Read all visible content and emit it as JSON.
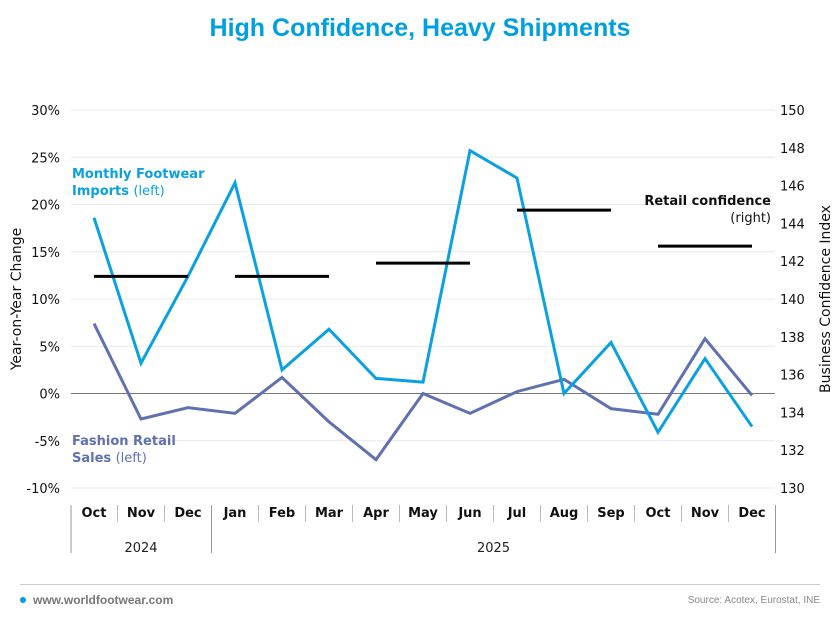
{
  "title": "High Confidence, Heavy Shipments",
  "footer": {
    "website": "www.worldfootwear.com",
    "source": "Source: Acotex, Eurostat, INE"
  },
  "colors": {
    "title": "#00a0e0",
    "imports": "#0ba0e0",
    "retail": "#6070b0",
    "confidence": "#000000"
  },
  "chart_data": {
    "type": "line",
    "title": "High Confidence, Heavy Shipments",
    "x": [
      "Oct",
      "Nov",
      "Dec",
      "Jan",
      "Feb",
      "Mar",
      "Apr",
      "May",
      "Jun",
      "Jul",
      "Aug",
      "Sep",
      "Oct",
      "Nov",
      "Dec"
    ],
    "year_groups": [
      {
        "label": "2024",
        "months": 3
      },
      {
        "label": "2025",
        "months": 12
      }
    ],
    "ylabel": "Year-on-Year Change",
    "ylabel_right": "Business Confidence Index",
    "ylim": [
      -10,
      30
    ],
    "ylim_right": [
      130,
      150
    ],
    "yticks": [
      "30%",
      "25%",
      "20%",
      "15%",
      "10%",
      "5%",
      "0%",
      "-5%",
      "-10%"
    ],
    "yticks_right": [
      "150",
      "148",
      "146",
      "144",
      "142",
      "140",
      "138",
      "136",
      "134",
      "132",
      "130"
    ],
    "grid": true,
    "series": [
      {
        "name": "Monthly Footwear Imports",
        "axis": "left",
        "label_bold": "Monthly Footwear Imports",
        "label_suffix": "(left)",
        "values": [
          18.6,
          3.2,
          12.4,
          22.3,
          2.5,
          6.8,
          1.6,
          1.2,
          25.7,
          22.8,
          0.0,
          5.4,
          -4.1,
          3.7,
          -3.5
        ]
      },
      {
        "name": "Fashion Retail Sales",
        "axis": "left",
        "label_bold": "Fashion Retail Sales",
        "label_suffix": "(left)",
        "values": [
          7.4,
          -2.7,
          -1.5,
          -2.1,
          1.7,
          -3.0,
          -7.0,
          0.0,
          -2.1,
          0.2,
          1.5,
          -1.6,
          -2.2,
          5.8,
          -0.2
        ]
      },
      {
        "name": "Retail confidence",
        "axis": "right",
        "label_bold": "Retail confidence",
        "label_suffix": "(right)",
        "type": "step",
        "segments": [
          {
            "start": 0,
            "end": 2,
            "value": 141.2
          },
          {
            "start": 3,
            "end": 5,
            "value": 141.2
          },
          {
            "start": 6,
            "end": 8,
            "value": 141.9
          },
          {
            "start": 9,
            "end": 11,
            "value": 144.7
          },
          {
            "start": 12,
            "end": 14,
            "value": 142.8
          }
        ]
      }
    ]
  }
}
